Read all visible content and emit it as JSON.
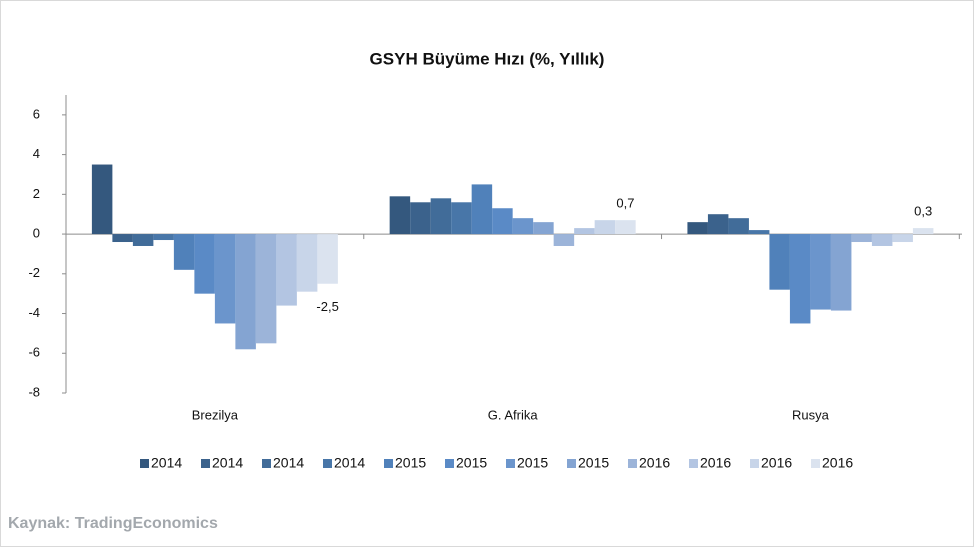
{
  "chart_data": {
    "type": "bar",
    "title": "GSYH Büyüme Hızı (%, Yıllık)",
    "source": "Kaynak: TradingEconomics",
    "categories": [
      "Brezilya",
      "G. Afrika",
      "Rusya"
    ],
    "ylim": [
      -8,
      7
    ],
    "yticks": [
      -8,
      -6,
      -4,
      -2,
      0,
      2,
      4,
      6
    ],
    "series": [
      {
        "name": "2014",
        "color": "#34587e",
        "values": [
          3.5,
          1.9,
          0.6
        ]
      },
      {
        "name": "2014",
        "color": "#3b628c",
        "values": [
          -0.4,
          1.6,
          1.0
        ]
      },
      {
        "name": "2014",
        "color": "#416c99",
        "values": [
          -0.6,
          1.8,
          0.8
        ]
      },
      {
        "name": "2014",
        "color": "#4876a8",
        "values": [
          -0.3,
          1.6,
          0.2
        ]
      },
      {
        "name": "2015",
        "color": "#5081ba",
        "values": [
          -1.8,
          2.5,
          -2.8
        ]
      },
      {
        "name": "2015",
        "color": "#5a8ac6",
        "values": [
          -3.0,
          1.3,
          -4.5
        ]
      },
      {
        "name": "2015",
        "color": "#6b95cc",
        "values": [
          -4.5,
          0.8,
          -3.8
        ]
      },
      {
        "name": "2015",
        "color": "#84a4d2",
        "values": [
          -5.8,
          0.6,
          -3.85
        ]
      },
      {
        "name": "2016",
        "color": "#9cb4d9",
        "values": [
          -5.5,
          -0.6,
          -0.4
        ]
      },
      {
        "name": "2016",
        "color": "#b3c5e2",
        "values": [
          -3.6,
          0.3,
          -0.6
        ]
      },
      {
        "name": "2016",
        "color": "#c8d5e9",
        "values": [
          -2.9,
          0.7,
          -0.4
        ]
      },
      {
        "name": "2016",
        "color": "#dbe3ef",
        "values": [
          -2.5,
          0.7,
          0.3
        ],
        "value_labels": [
          "-2,5",
          "0,7",
          "0,3"
        ]
      }
    ]
  }
}
